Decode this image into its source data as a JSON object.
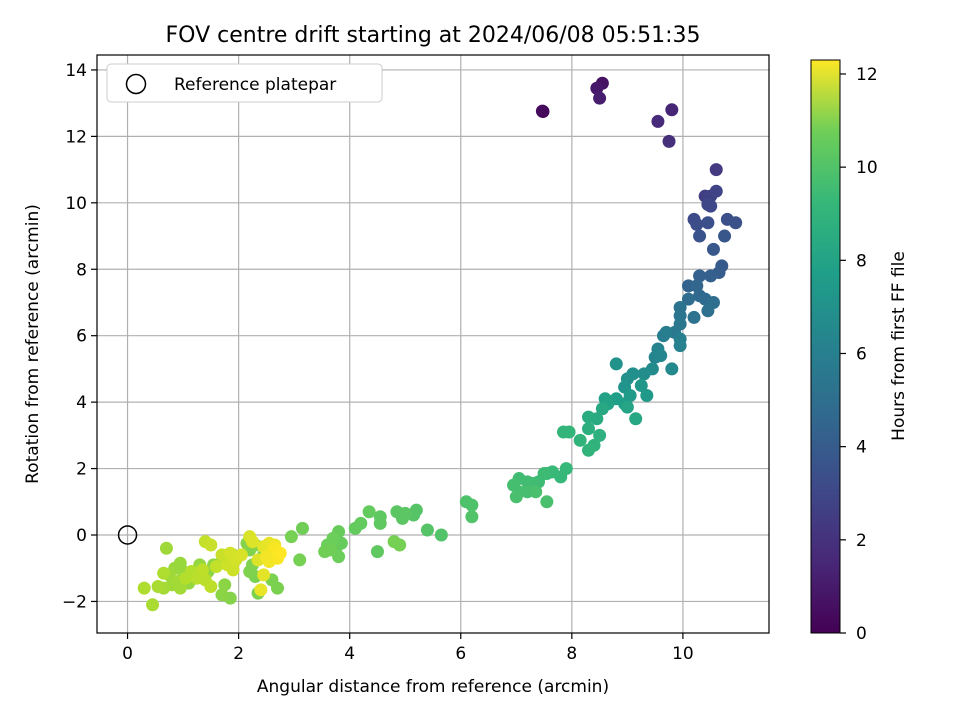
{
  "chart_data": {
    "type": "scatter",
    "title": "FOV centre drift starting at 2024/06/08 05:51:35",
    "xlabel": "Angular distance from reference (arcmin)",
    "ylabel": "Rotation from reference (arcmin)",
    "xlim": [
      -0.55,
      11.55
    ],
    "ylim": [
      -2.95,
      14.45
    ],
    "xticks": [
      0,
      2,
      4,
      6,
      8,
      10
    ],
    "yticks": [
      -2,
      0,
      2,
      4,
      6,
      8,
      10,
      12,
      14
    ],
    "grid": true,
    "legend": {
      "placement": "top-left",
      "entries": [
        {
          "label": "Reference platepar",
          "marker": "open-circle"
        }
      ]
    },
    "reference_point": {
      "x": 0,
      "y": 0
    },
    "colorbar": {
      "label": "Hours from first FF file",
      "colormap": "viridis",
      "range": [
        0,
        12.3
      ],
      "ticks": [
        0,
        2,
        4,
        6,
        8,
        10,
        12
      ]
    },
    "series": [
      {
        "note_fields": [
          "x",
          "y",
          "hours"
        ],
        "points": [
          [
            7.48,
            12.75,
            0.1
          ],
          [
            7.47,
            12.76,
            0.3
          ],
          [
            8.55,
            13.6,
            0.6
          ],
          [
            8.45,
            13.45,
            0.8
          ],
          [
            8.5,
            13.15,
            1.0
          ],
          [
            9.8,
            12.8,
            1.3
          ],
          [
            9.55,
            12.45,
            1.5
          ],
          [
            9.75,
            11.85,
            1.7
          ],
          [
            10.6,
            11.0,
            2.1
          ],
          [
            10.4,
            10.2,
            2.3
          ],
          [
            10.5,
            10.2,
            2.4
          ],
          [
            10.6,
            10.35,
            2.5
          ],
          [
            10.45,
            9.95,
            2.6
          ],
          [
            10.5,
            9.9,
            2.7
          ],
          [
            10.2,
            9.5,
            2.8
          ],
          [
            10.25,
            9.35,
            2.9
          ],
          [
            10.45,
            9.4,
            3.0
          ],
          [
            10.8,
            9.5,
            3.0
          ],
          [
            10.95,
            9.4,
            3.1
          ],
          [
            10.3,
            9.0,
            3.2
          ],
          [
            10.75,
            9.0,
            3.3
          ],
          [
            10.55,
            8.6,
            3.4
          ],
          [
            10.7,
            8.1,
            3.5
          ],
          [
            10.65,
            7.9,
            3.6
          ],
          [
            10.5,
            7.8,
            3.7
          ],
          [
            10.3,
            7.8,
            3.8
          ],
          [
            10.1,
            7.5,
            3.9
          ],
          [
            10.25,
            7.5,
            4.0
          ],
          [
            10.3,
            7.2,
            4.1
          ],
          [
            10.4,
            7.1,
            4.2
          ],
          [
            10.1,
            7.1,
            4.3
          ],
          [
            10.55,
            7.0,
            4.4
          ],
          [
            10.45,
            6.75,
            4.5
          ],
          [
            10.2,
            6.55,
            4.6
          ],
          [
            9.95,
            6.85,
            4.7
          ],
          [
            9.95,
            6.6,
            4.8
          ],
          [
            9.95,
            6.35,
            4.9
          ],
          [
            9.85,
            6.1,
            5.0
          ],
          [
            9.7,
            6.1,
            5.1
          ],
          [
            9.65,
            6.0,
            5.2
          ],
          [
            9.95,
            5.9,
            5.3
          ],
          [
            9.95,
            5.7,
            5.4
          ],
          [
            9.55,
            5.6,
            5.5
          ],
          [
            9.5,
            5.35,
            5.6
          ],
          [
            9.6,
            5.4,
            5.7
          ],
          [
            9.8,
            5.0,
            5.8
          ],
          [
            9.45,
            5.0,
            5.9
          ],
          [
            9.3,
            4.85,
            6.0
          ],
          [
            9.1,
            4.85,
            6.1
          ],
          [
            9.0,
            4.7,
            6.2
          ],
          [
            8.8,
            5.15,
            6.3
          ],
          [
            8.95,
            4.45,
            6.4
          ],
          [
            9.25,
            4.5,
            6.5
          ],
          [
            9.35,
            4.2,
            6.6
          ],
          [
            9.05,
            4.2,
            6.7
          ],
          [
            8.95,
            3.95,
            6.8
          ],
          [
            8.8,
            4.1,
            6.9
          ],
          [
            8.6,
            4.1,
            7.0
          ],
          [
            8.65,
            3.95,
            7.1
          ],
          [
            9.0,
            3.85,
            7.2
          ],
          [
            9.15,
            3.5,
            7.3
          ],
          [
            8.55,
            3.8,
            7.4
          ],
          [
            8.45,
            3.5,
            7.5
          ],
          [
            8.3,
            3.55,
            7.6
          ],
          [
            8.3,
            3.2,
            7.7
          ],
          [
            8.5,
            3.0,
            7.8
          ],
          [
            8.4,
            2.7,
            7.9
          ],
          [
            8.3,
            2.55,
            8.0
          ],
          [
            8.15,
            2.85,
            8.0
          ],
          [
            7.95,
            3.1,
            8.1
          ],
          [
            7.85,
            3.1,
            8.1
          ],
          [
            7.9,
            2.0,
            8.2
          ],
          [
            7.8,
            1.75,
            8.2
          ],
          [
            7.65,
            1.9,
            8.3
          ],
          [
            7.55,
            1.85,
            8.3
          ],
          [
            7.5,
            1.85,
            8.4
          ],
          [
            7.4,
            1.6,
            8.4
          ],
          [
            7.3,
            1.55,
            8.5
          ],
          [
            7.2,
            1.6,
            8.5
          ],
          [
            7.05,
            1.7,
            8.5
          ],
          [
            6.95,
            1.5,
            8.6
          ],
          [
            7.05,
            1.3,
            8.6
          ],
          [
            7.2,
            1.3,
            8.6
          ],
          [
            7.35,
            1.3,
            8.7
          ],
          [
            7.0,
            1.15,
            8.7
          ],
          [
            7.55,
            1.0,
            8.7
          ],
          [
            6.1,
            1.0,
            8.8
          ],
          [
            6.2,
            0.9,
            8.8
          ],
          [
            6.2,
            0.55,
            8.9
          ],
          [
            5.65,
            0.0,
            8.9
          ],
          [
            5.4,
            0.15,
            9.0
          ],
          [
            5.2,
            0.75,
            9.0
          ],
          [
            5.15,
            0.6,
            9.0
          ],
          [
            5.0,
            0.65,
            9.1
          ],
          [
            4.95,
            0.5,
            9.1
          ],
          [
            4.85,
            0.7,
            9.1
          ],
          [
            4.55,
            0.55,
            9.2
          ],
          [
            4.55,
            0.35,
            9.2
          ],
          [
            4.5,
            -0.5,
            9.2
          ],
          [
            4.35,
            0.7,
            9.3
          ],
          [
            4.2,
            0.35,
            9.3
          ],
          [
            4.1,
            0.2,
            9.3
          ],
          [
            3.8,
            0.1,
            9.4
          ],
          [
            3.85,
            -0.25,
            9.4
          ],
          [
            3.75,
            -0.4,
            9.4
          ],
          [
            3.8,
            -0.65,
            9.5
          ],
          [
            3.7,
            -0.1,
            9.5
          ],
          [
            3.6,
            -0.3,
            9.5
          ],
          [
            3.55,
            -0.5,
            9.6
          ],
          [
            3.65,
            -0.45,
            9.6
          ],
          [
            3.15,
            0.2,
            9.6
          ],
          [
            3.1,
            -0.75,
            9.7
          ],
          [
            2.95,
            -0.05,
            9.7
          ],
          [
            4.9,
            -0.3,
            9.7
          ],
          [
            4.8,
            -0.2,
            9.7
          ],
          [
            2.7,
            -1.6,
            9.8
          ],
          [
            2.6,
            -1.35,
            9.8
          ],
          [
            2.35,
            -1.75,
            9.8
          ],
          [
            2.3,
            -1.25,
            9.8
          ],
          [
            2.2,
            -1.1,
            9.9
          ],
          [
            2.25,
            -0.9,
            9.9
          ],
          [
            2.2,
            -0.45,
            9.9
          ],
          [
            2.15,
            -0.25,
            10.0
          ],
          [
            2.3,
            -0.3,
            10.0
          ],
          [
            2.45,
            -0.6,
            10.0
          ],
          [
            1.85,
            -1.9,
            10.0
          ],
          [
            1.7,
            -1.8,
            10.1
          ],
          [
            1.75,
            -1.5,
            10.1
          ],
          [
            1.9,
            -0.6,
            10.1
          ],
          [
            1.7,
            -0.8,
            10.2
          ],
          [
            1.55,
            -0.9,
            10.2
          ],
          [
            1.45,
            -1.1,
            10.2
          ],
          [
            1.3,
            -0.9,
            10.3
          ],
          [
            1.2,
            -1.3,
            10.3
          ],
          [
            1.1,
            -1.45,
            10.3
          ],
          [
            1.0,
            -1.1,
            10.4
          ],
          [
            0.95,
            -0.85,
            10.4
          ],
          [
            0.85,
            -1.0,
            10.4
          ],
          [
            0.75,
            -1.2,
            10.5
          ],
          [
            0.7,
            -0.4,
            10.5
          ],
          [
            0.8,
            -1.5,
            10.5
          ],
          [
            0.9,
            -1.4,
            10.6
          ],
          [
            0.95,
            -1.6,
            10.6
          ],
          [
            0.65,
            -1.6,
            10.6
          ],
          [
            0.55,
            -1.55,
            10.7
          ],
          [
            0.45,
            -2.1,
            10.7
          ],
          [
            0.3,
            -1.6,
            10.8
          ],
          [
            0.65,
            -1.15,
            10.8
          ],
          [
            1.05,
            -1.3,
            10.9
          ],
          [
            1.15,
            -1.1,
            10.9
          ],
          [
            1.25,
            -1.3,
            11.0
          ],
          [
            1.4,
            -1.35,
            11.0
          ],
          [
            1.35,
            -1.05,
            11.1
          ],
          [
            1.5,
            -1.55,
            11.1
          ],
          [
            1.6,
            -0.95,
            11.2
          ],
          [
            1.4,
            -0.2,
            11.2
          ],
          [
            1.5,
            -0.3,
            11.3
          ],
          [
            1.7,
            -0.6,
            11.3
          ],
          [
            1.9,
            -1.05,
            11.4
          ],
          [
            1.8,
            -0.9,
            11.4
          ],
          [
            1.85,
            -0.55,
            11.5
          ],
          [
            1.95,
            -0.75,
            11.5
          ],
          [
            2.05,
            -0.6,
            11.6
          ],
          [
            2.2,
            -0.05,
            11.6
          ],
          [
            2.25,
            -0.2,
            11.7
          ],
          [
            2.35,
            -0.75,
            11.7
          ],
          [
            2.45,
            -0.35,
            11.8
          ],
          [
            2.45,
            -1.2,
            11.8
          ],
          [
            2.4,
            -1.65,
            11.9
          ],
          [
            2.55,
            -0.25,
            11.9
          ],
          [
            2.6,
            -0.5,
            12.0
          ],
          [
            2.65,
            -0.3,
            12.0
          ],
          [
            2.5,
            -0.65,
            12.1
          ],
          [
            2.55,
            -0.8,
            12.1
          ],
          [
            2.7,
            -0.7,
            12.2
          ],
          [
            2.65,
            -0.4,
            12.2
          ],
          [
            2.75,
            -0.55,
            12.3
          ]
        ]
      }
    ]
  }
}
